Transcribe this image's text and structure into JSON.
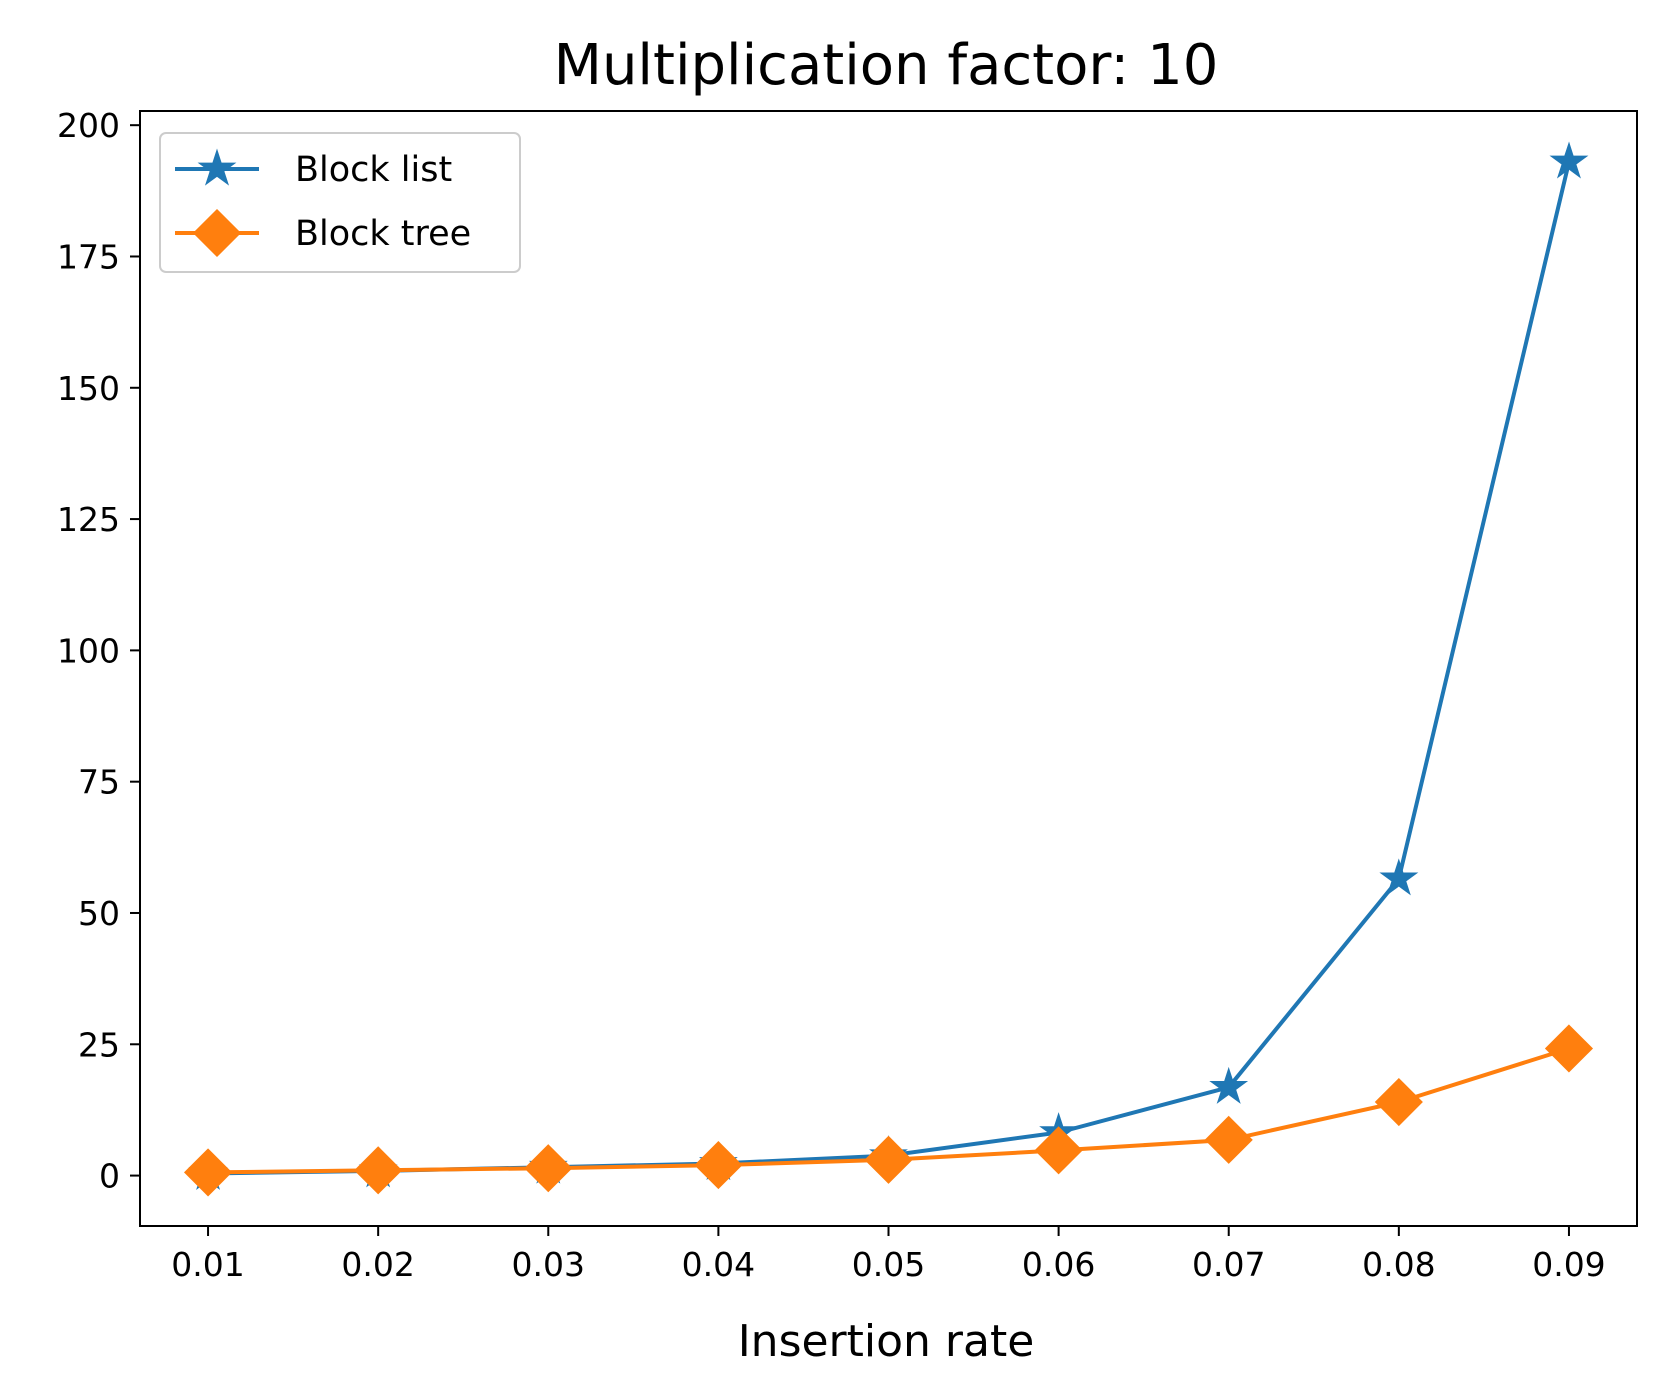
{
  "chart_data": {
    "type": "line",
    "title": "Multiplication factor: 10",
    "xlabel": "Insertion rate",
    "ylabel": "",
    "x": [
      0.01,
      0.02,
      0.03,
      0.04,
      0.05,
      0.06,
      0.07,
      0.08,
      0.09
    ],
    "x_ticks": [
      "0.01",
      "0.02",
      "0.03",
      "0.04",
      "0.05",
      "0.06",
      "0.07",
      "0.08",
      "0.09"
    ],
    "y_ticks": [
      "0",
      "25",
      "50",
      "75",
      "100",
      "125",
      "150",
      "175",
      "200"
    ],
    "ylim": [
      -9.6,
      202.7
    ],
    "grid": false,
    "legend_position": "upper-left",
    "series": [
      {
        "name": "Block list",
        "values": [
          0.4,
          0.9,
          1.6,
          2.3,
          3.8,
          8.2,
          16.8,
          56.5,
          193.0
        ],
        "color": "#1f77b4",
        "marker": "star"
      },
      {
        "name": "Block tree",
        "values": [
          0.6,
          1.0,
          1.4,
          2.0,
          3.0,
          4.8,
          6.8,
          14.0,
          24.2
        ],
        "color": "#ff7f0e",
        "marker": "diamond"
      }
    ]
  }
}
